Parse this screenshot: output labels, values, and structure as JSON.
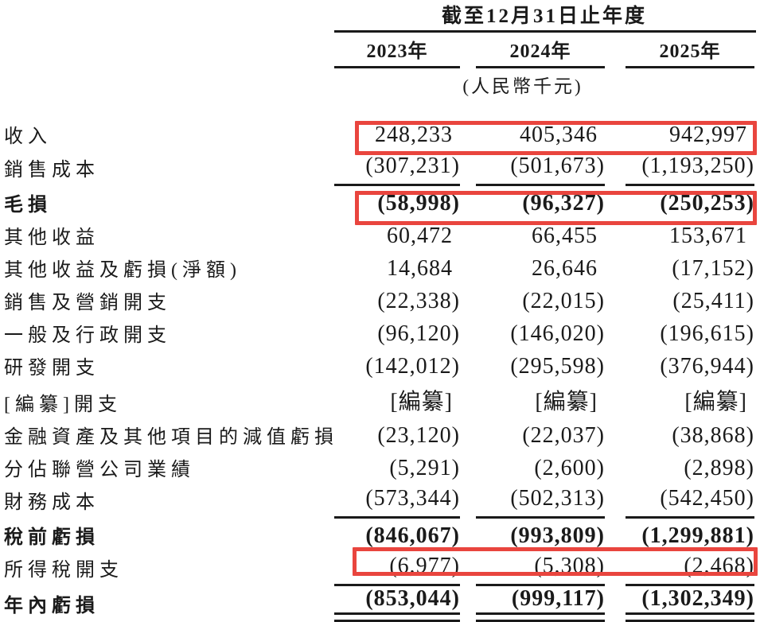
{
  "table": {
    "period_header": "截至12月31日止年度",
    "unit_note": "(人民幣千元)",
    "columns": [
      "2023年",
      "2024年",
      "2025年"
    ],
    "highlight_color": "#e9453e",
    "rows": [
      {
        "label": "收入",
        "values": [
          "248,233",
          "405,346",
          "942,997"
        ],
        "bold": false,
        "rule": "none",
        "highlight": true
      },
      {
        "label": "銷售成本",
        "values": [
          "(307,231)",
          "(501,673)",
          "(1,193,250)"
        ],
        "bold": false,
        "rule": "single",
        "highlight": false
      },
      {
        "label": "毛損",
        "values": [
          "(58,998)",
          "(96,327)",
          "(250,253)"
        ],
        "bold": true,
        "rule": "none",
        "highlight": true
      },
      {
        "label": "其他收益",
        "values": [
          "60,472",
          "66,455",
          "153,671"
        ],
        "bold": false,
        "rule": "none",
        "highlight": false
      },
      {
        "label": "其他收益及虧損(淨額)",
        "values": [
          "14,684",
          "26,646",
          "(17,152)"
        ],
        "bold": false,
        "rule": "none",
        "highlight": false
      },
      {
        "label": "銷售及營銷開支",
        "values": [
          "(22,338)",
          "(22,015)",
          "(25,411)"
        ],
        "bold": false,
        "rule": "none",
        "highlight": false
      },
      {
        "label": "一般及行政開支",
        "values": [
          "(96,120)",
          "(146,020)",
          "(196,615)"
        ],
        "bold": false,
        "rule": "none",
        "highlight": false
      },
      {
        "label": "研發開支",
        "values": [
          "(142,012)",
          "(295,598)",
          "(376,944)"
        ],
        "bold": false,
        "rule": "none",
        "highlight": false
      },
      {
        "label": "[編纂]開支",
        "values": [
          "[編纂]",
          "[編纂]",
          "[編纂]"
        ],
        "bold": false,
        "rule": "none",
        "highlight": false
      },
      {
        "label": "金融資產及其他項目的減值虧損",
        "values": [
          "(23,120)",
          "(22,037)",
          "(38,868)"
        ],
        "bold": false,
        "rule": "none",
        "highlight": false
      },
      {
        "label": "分佔聯營公司業績",
        "values": [
          "(5,291)",
          "(2,600)",
          "(2,898)"
        ],
        "bold": false,
        "rule": "none",
        "highlight": false
      },
      {
        "label": "財務成本",
        "values": [
          "(573,344)",
          "(502,313)",
          "(542,450)"
        ],
        "bold": false,
        "rule": "single",
        "highlight": false
      },
      {
        "label": "稅前虧損",
        "values": [
          "(846,067)",
          "(993,809)",
          "(1,299,881)"
        ],
        "bold": true,
        "rule": "none",
        "highlight": false
      },
      {
        "label": "所得稅開支",
        "values": [
          "(6,977)",
          "(5,308)",
          "(2,468)"
        ],
        "bold": false,
        "rule": "single",
        "highlight": false
      },
      {
        "label": "年內虧損",
        "values": [
          "(853,044)",
          "(999,117)",
          "(1,302,349)"
        ],
        "bold": true,
        "rule": "double",
        "highlight": true
      }
    ]
  }
}
